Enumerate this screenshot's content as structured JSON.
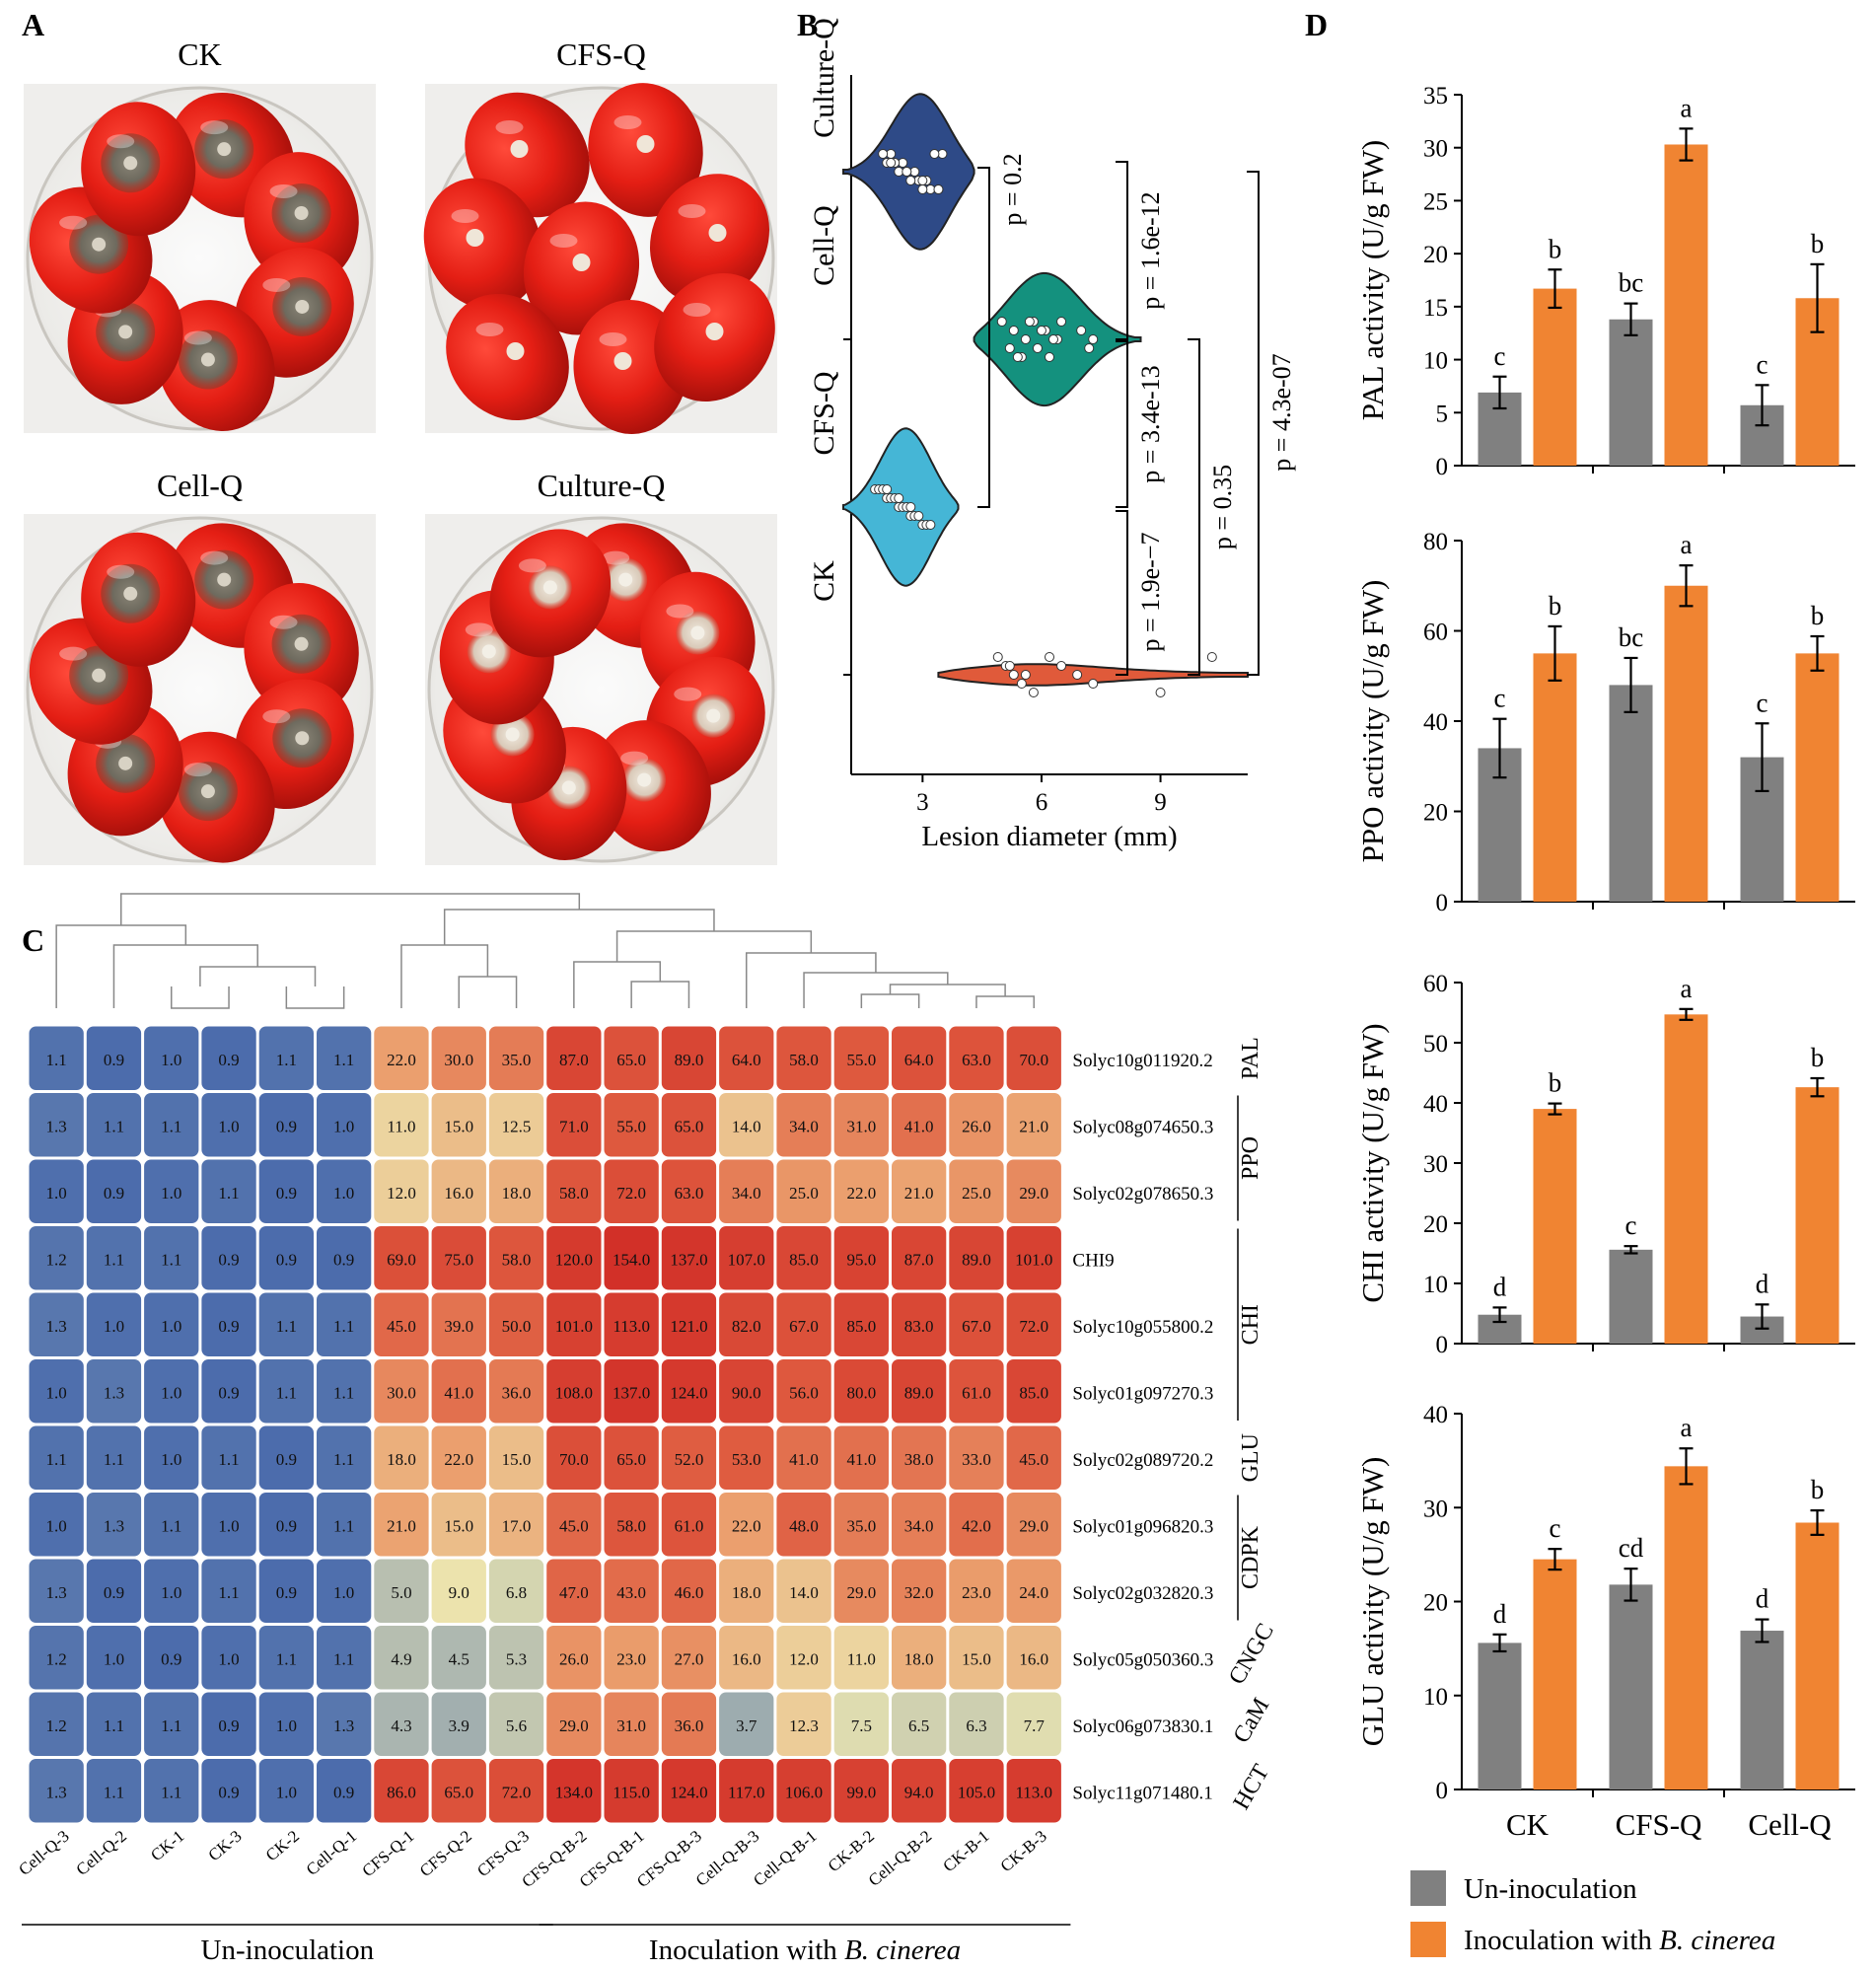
{
  "panels": {
    "A": "A",
    "B": "B",
    "C": "C",
    "D": "D"
  },
  "panel_a": {
    "photos": [
      {
        "label": "CK",
        "lesion": "gray",
        "n": 7,
        "style": "ring"
      },
      {
        "label": "CFS-Q",
        "lesion": "clean",
        "n": 8,
        "style": "cluster"
      },
      {
        "label": "Cell-Q",
        "lesion": "gray",
        "n": 7,
        "style": "ring"
      },
      {
        "label": "Culture-Q",
        "lesion": "light",
        "n": 8,
        "style": "ring"
      }
    ]
  },
  "chart_data": [
    {
      "id": "violin",
      "type": "violin",
      "xlabel": "Lesion diameter (mm)",
      "xticks": [
        3,
        6,
        9
      ],
      "xlim": [
        1.2,
        11.2
      ],
      "groups": [
        {
          "name": "Culture-Q",
          "color": "#2e4a87",
          "points": [
            2.2,
            2.5,
            2.8,
            3.1,
            3.4,
            2.0,
            2.3,
            2.6,
            2.9,
            3.2,
            3.5,
            2.1,
            2.4,
            2.7,
            3.0,
            3.3,
            2.2,
            2.6,
            3.0,
            3.4
          ],
          "kde_lo": 1.0,
          "kde_hi": 4.3,
          "mode": 3.0,
          "width": 0.9
        },
        {
          "name": "Cell-Q",
          "color": "#14917e",
          "points": [
            5.0,
            5.3,
            5.6,
            5.9,
            6.2,
            6.5,
            7.0,
            7.3,
            5.2,
            5.5,
            5.8,
            6.1,
            6.4,
            7.2,
            5.4,
            5.7,
            6.0,
            6.3
          ],
          "kde_lo": 4.3,
          "kde_hi": 8.5,
          "mode": 6.0,
          "width": 0.7
        },
        {
          "name": "CFS-Q",
          "color": "#45b6d6",
          "points": [
            1.8,
            2.1,
            2.4,
            2.7,
            3.0,
            1.9,
            2.2,
            2.5,
            2.8,
            3.1,
            2.0,
            2.3,
            2.6,
            2.9,
            3.2,
            2.1,
            2.4,
            2.7
          ],
          "kde_lo": 1.0,
          "kde_hi": 3.9,
          "mode": 2.6,
          "width": 0.95
        },
        {
          "name": "CK",
          "color": "#e05a3a",
          "points": [
            4.9,
            5.1,
            5.3,
            5.5,
            5.8,
            6.2,
            6.5,
            6.9,
            7.3,
            9.0,
            10.3,
            5.2,
            5.6
          ],
          "kde_lo": 3.4,
          "kde_hi": 11.2,
          "mode": 5.4,
          "width": 0.2
        }
      ],
      "pvalues": [
        "p = 0.2",
        "p = 1.6e-12",
        "p = 3.4e-13",
        "p = 0.35",
        "p = 4.3e-07",
        "p = 1.9e-−7"
      ]
    },
    {
      "id": "heatmap",
      "type": "heatmap",
      "columns": [
        "Cell-Q-3",
        "Cell-Q-2",
        "CK-1",
        "CK-3",
        "CK-2",
        "Cell-Q-1",
        "CFS-Q-1",
        "CFS-Q-2",
        "CFS-Q-3",
        "CFS-Q-B-2",
        "CFS-Q-B-1",
        "CFS-Q-B-3",
        "Cell-Q-B-3",
        "Cell-Q-B-1",
        "CK-B-2",
        "Cell-Q-B-2",
        "CK-B-1",
        "CK-B-3"
      ],
      "rows": [
        {
          "gene": "Solyc10g011920.2",
          "values": [
            1.1,
            0.9,
            1.0,
            0.9,
            1.1,
            1.1,
            22.0,
            30.0,
            35.0,
            87.0,
            65.0,
            89.0,
            64.0,
            58.0,
            55.0,
            64.0,
            63.0,
            70.0
          ]
        },
        {
          "gene": "Solyc08g074650.3",
          "values": [
            1.3,
            1.1,
            1.1,
            1.0,
            0.9,
            1.0,
            11.0,
            15.0,
            12.5,
            71.0,
            55.0,
            65.0,
            14.0,
            34.0,
            31.0,
            41.0,
            26.0,
            21.0
          ]
        },
        {
          "gene": "Solyc02g078650.3",
          "values": [
            1.0,
            0.9,
            1.0,
            1.1,
            0.9,
            1.0,
            12.0,
            16.0,
            18.0,
            58.0,
            72.0,
            63.0,
            34.0,
            25.0,
            22.0,
            21.0,
            25.0,
            29.0
          ]
        },
        {
          "gene": "CHI9",
          "values": [
            1.2,
            1.1,
            1.1,
            0.9,
            0.9,
            0.9,
            69.0,
            75.0,
            58.0,
            120.0,
            154.0,
            137.0,
            107.0,
            85.0,
            95.0,
            87.0,
            89.0,
            101.0
          ]
        },
        {
          "gene": "Solyc10g055800.2",
          "values": [
            1.3,
            1.0,
            1.0,
            0.9,
            1.1,
            1.1,
            45.0,
            39.0,
            50.0,
            101.0,
            113.0,
            121.0,
            82.0,
            67.0,
            85.0,
            83.0,
            67.0,
            72.0
          ]
        },
        {
          "gene": "Solyc01g097270.3",
          "values": [
            1.0,
            1.3,
            1.0,
            0.9,
            1.1,
            1.1,
            30.0,
            41.0,
            36.0,
            108.0,
            137.0,
            124.0,
            90.0,
            56.0,
            80.0,
            89.0,
            61.0,
            85.0
          ]
        },
        {
          "gene": "Solyc02g089720.2",
          "values": [
            1.1,
            1.1,
            1.0,
            1.1,
            0.9,
            1.1,
            18.0,
            22.0,
            15.0,
            70.0,
            65.0,
            52.0,
            53.0,
            41.0,
            41.0,
            38.0,
            33.0,
            45.0
          ]
        },
        {
          "gene": "Solyc01g096820.3",
          "values": [
            1.0,
            1.3,
            1.1,
            1.0,
            0.9,
            1.1,
            21.0,
            15.0,
            17.0,
            45.0,
            58.0,
            61.0,
            22.0,
            48.0,
            35.0,
            34.0,
            42.0,
            29.0
          ]
        },
        {
          "gene": "Solyc02g032820.3",
          "values": [
            1.3,
            0.9,
            1.0,
            1.1,
            0.9,
            1.0,
            5.0,
            9.0,
            6.8,
            47.0,
            43.0,
            46.0,
            18.0,
            14.0,
            29.0,
            32.0,
            23.0,
            24.0
          ]
        },
        {
          "gene": "Solyc05g050360.3",
          "values": [
            1.2,
            1.0,
            0.9,
            1.0,
            1.1,
            1.1,
            4.9,
            4.5,
            5.3,
            26.0,
            23.0,
            27.0,
            16.0,
            12.0,
            11.0,
            18.0,
            15.0,
            16.0
          ]
        },
        {
          "gene": "Solyc06g073830.1",
          "values": [
            1.2,
            1.1,
            1.1,
            0.9,
            1.0,
            1.3,
            4.3,
            3.9,
            5.6,
            29.0,
            31.0,
            36.0,
            3.7,
            12.3,
            7.5,
            6.5,
            6.3,
            7.7
          ]
        },
        {
          "gene": "Solyc11g071480.1",
          "values": [
            1.3,
            1.1,
            1.1,
            0.9,
            1.0,
            0.9,
            86.0,
            65.0,
            72.0,
            134.0,
            115.0,
            124.0,
            117.0,
            106.0,
            99.0,
            94.0,
            105.0,
            113.0
          ]
        }
      ],
      "gene_groups": [
        {
          "name": "PAL",
          "rows": [
            0,
            0
          ]
        },
        {
          "name": "PPO",
          "rows": [
            1,
            2
          ]
        },
        {
          "name": "CHI",
          "rows": [
            3,
            5
          ]
        },
        {
          "name": "GLU",
          "rows": [
            6,
            6
          ]
        },
        {
          "name": "CDPK",
          "rows": [
            7,
            8
          ]
        },
        {
          "name": "CNGC",
          "rows": [
            9,
            9
          ]
        },
        {
          "name": "CaM",
          "rows": [
            10,
            10
          ]
        },
        {
          "name": "HCT",
          "rows": [
            11,
            11
          ]
        }
      ],
      "col_groups": [
        {
          "prefix": "Un-inoculation",
          "italic": "",
          "cols": [
            0,
            8
          ]
        },
        {
          "prefix": "Inoculation with ",
          "italic": "B. cinerea",
          "cols": [
            9,
            17
          ]
        }
      ]
    },
    {
      "id": "enzyme_bars",
      "type": "bar",
      "categories": [
        "CK",
        "CFS-Q",
        "Cell-Q"
      ],
      "legend": [
        "Un-inoculation",
        "Inoculation with ",
        "B. cinerea"
      ],
      "colors": {
        "un": "#808080",
        "inoc": "#f08432"
      },
      "subplots": [
        {
          "ylabel": "PAL activity (U/g FW)",
          "ylim": [
            0,
            35
          ],
          "yticks": [
            0,
            5,
            10,
            15,
            20,
            25,
            30,
            35
          ],
          "un": [
            6.9,
            13.8,
            5.7
          ],
          "un_err": [
            1.5,
            1.5,
            1.9
          ],
          "inoc": [
            16.7,
            30.3,
            15.8
          ],
          "inoc_err": [
            1.8,
            1.5,
            3.2
          ],
          "un_letters": [
            "c",
            "bc",
            "c"
          ],
          "inoc_letters": [
            "b",
            "a",
            "b"
          ]
        },
        {
          "ylabel": "PPO activity (U/g FW)",
          "ylim": [
            0,
            80
          ],
          "yticks": [
            0,
            20,
            40,
            60,
            80
          ],
          "un": [
            34,
            48,
            32
          ],
          "un_err": [
            6.5,
            6,
            7.5
          ],
          "inoc": [
            55,
            70,
            55
          ],
          "inoc_err": [
            6,
            4.5,
            3.8
          ],
          "un_letters": [
            "c",
            "bc",
            "c"
          ],
          "inoc_letters": [
            "b",
            "a",
            "b"
          ]
        },
        {
          "ylabel": "CHI activity (U/g FW)",
          "ylim": [
            0,
            60
          ],
          "yticks": [
            0,
            10,
            20,
            30,
            40,
            50,
            60
          ],
          "un": [
            4.8,
            15.6,
            4.5
          ],
          "un_err": [
            1.2,
            0.6,
            2.0
          ],
          "inoc": [
            39,
            54.7,
            42.6
          ],
          "inoc_err": [
            0.9,
            0.9,
            1.5
          ],
          "un_letters": [
            "d",
            "c",
            "d"
          ],
          "inoc_letters": [
            "b",
            "a",
            "b"
          ]
        },
        {
          "ylabel": "GLU activity (U/g FW)",
          "ylim": [
            0,
            40
          ],
          "yticks": [
            0,
            10,
            20,
            30,
            40
          ],
          "un": [
            15.6,
            21.8,
            16.9
          ],
          "un_err": [
            0.9,
            1.7,
            1.2
          ],
          "inoc": [
            24.5,
            34.4,
            28.4
          ],
          "inoc_err": [
            1.1,
            1.9,
            1.3
          ],
          "un_letters": [
            "d",
            "cd",
            "d"
          ],
          "inoc_letters": [
            "c",
            "a",
            "b"
          ]
        }
      ]
    }
  ]
}
